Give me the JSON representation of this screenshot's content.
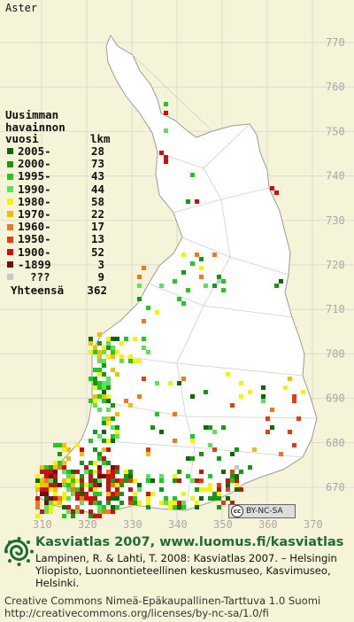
{
  "species": "Aster",
  "legend": {
    "title_lines": [
      "Uusimman",
      "havainnon"
    ],
    "col_year": "vuosi",
    "col_count": "lkm",
    "rows": [
      {
        "label": "2005-",
        "count": "28",
        "color": "#0a6a0a"
      },
      {
        "label": "2000-",
        "count": "73",
        "color": "#129a12"
      },
      {
        "label": "1995-",
        "count": "43",
        "color": "#22c822"
      },
      {
        "label": "1990-",
        "count": "44",
        "color": "#5ee05e"
      },
      {
        "label": "1980-",
        "count": "58",
        "color": "#f4f400"
      },
      {
        "label": "1970-",
        "count": "22",
        "color": "#f0c000"
      },
      {
        "label": "1960-",
        "count": "17",
        "color": "#f07818"
      },
      {
        "label": "1950-",
        "count": "13",
        "color": "#e04010"
      },
      {
        "label": "1900-",
        "count": "52",
        "color": "#cc1010"
      },
      {
        "label": "-1899",
        "count": "3",
        "color": "#7a0a0a"
      },
      {
        "label": "???",
        "count": "9",
        "color": "#c8c8c8"
      }
    ],
    "total_label": "Yhteensä",
    "total_count": "362"
  },
  "axes": {
    "northing": [
      "770",
      "760",
      "750",
      "740",
      "730",
      "720",
      "710",
      "700",
      "690",
      "680",
      "670"
    ],
    "easting": [
      "310",
      "320",
      "330",
      "340",
      "350",
      "360",
      "370"
    ]
  },
  "colors": {
    "background": "#f6f4d8",
    "land": "#ffffff",
    "grid": "#dcdcd0",
    "border": "#9a9a9a",
    "brand": "#1f6b3a"
  },
  "cc_badge": "BY-NC-SA",
  "brand": "Kasviatlas 2007, www.luomus.fi/kasviatlas",
  "citation": "Lampinen, R. & Lahti, T. 2008: Kasviatlas 2007. – Helsingin Yliopisto, Luonnontieteellinen keskusmuseo, Kasvimuseo, Helsinki.",
  "license_line1": "Creative Commons Nimeä-Epäkaupallinen-Tarttuva 1.0 Suomi",
  "license_line2": "http://creativecommons.org/licenses/by-nc-sa/1.0/fi"
}
